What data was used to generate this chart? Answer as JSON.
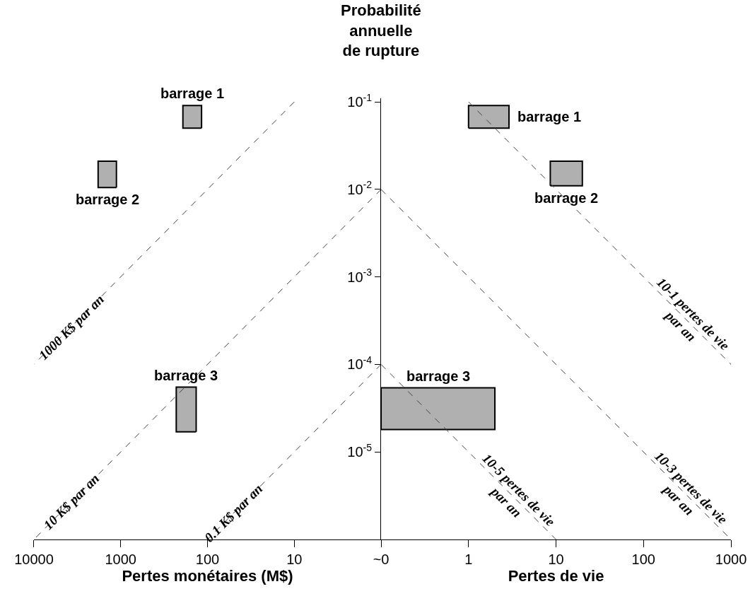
{
  "chart_data": [
    {
      "type": "area",
      "xlabel": "Pertes monétaires (M$)",
      "log": "xy",
      "xlim": [
        10000,
        1
      ],
      "xticks": [
        10000,
        1000,
        100,
        10
      ],
      "ylim": [
        1e-06,
        0.11
      ],
      "tick_labels": "x",
      "series": [
        {
          "name": "barrage 1",
          "color": "#b0b0b0",
          "x": [
            117,
            192,
            192,
            117,
            117
          ],
          "values": [
            0.05,
            0.05,
            0.091,
            0.091,
            0.05
          ]
        },
        {
          "name": "barrage 2",
          "color": "#b0b0b0",
          "x": [
            1120,
            1820,
            1820,
            1120,
            1120
          ],
          "values": [
            0.0105,
            0.0105,
            0.021,
            0.021,
            0.0105
          ]
        },
        {
          "name": "barrage 3",
          "color": "#b0b0b0",
          "x": [
            135,
            229,
            229,
            135,
            135
          ],
          "values": [
            1.7e-05,
            1.7e-05,
            5.5e-05,
            5.5e-05,
            1.7e-05
          ]
        },
        {
          "type": "line",
          "color": "#404040",
          "line_style": "dashed",
          "x": [
            10,
            10000
          ],
          "values": [
            0.1,
            0.0001
          ]
        },
        {
          "type": "line",
          "color": "#404040",
          "line_style": "dashed",
          "x": [
            1,
            10000
          ],
          "values": [
            0.01,
            1e-06
          ]
        },
        {
          "type": "line",
          "color": "#404040",
          "line_style": "dashed",
          "x": [
            1,
            100
          ],
          "values": [
            0.0001,
            1e-06
          ]
        }
      ],
      "annotations": [
        {
          "text": "1000 K$ par an",
          "x": 3700,
          "y": 0.00027
        },
        {
          "text": "10 K$ par an",
          "x": 3700,
          "y": 2.7e-06
        },
        {
          "text": "0.1 K$ par an",
          "x": 50,
          "y": 2e-06
        }
      ]
    },
    {
      "type": "area",
      "xlabel": "Pertes de vie",
      "ylabel": "Probabilité\nannuelle\nde rupture",
      "log": "xy",
      "xlim": [
        0.1,
        1000
      ],
      "xticks": [
        {
          "value": 0.1,
          "label": "~0"
        },
        1,
        10,
        100,
        1000
      ],
      "ylim": [
        1e-06,
        0.11
      ],
      "yticks": [
        {
          "value": 0.1,
          "label": "10$^{-1}$"
        },
        {
          "value": 0.01,
          "label": "10$^{-2}$"
        },
        {
          "value": 0.001,
          "label": "10$^{-3}$"
        },
        {
          "value": 0.0001,
          "label": "10$^{-4}$"
        },
        {
          "value": 1e-05,
          "label": "10$^{-5}$"
        }
      ],
      "series": [
        {
          "name": "barrage 1",
          "color": "#b0b0b0",
          "x": [
            1,
            2.9,
            2.9,
            1,
            1
          ],
          "values": [
            0.05,
            0.05,
            0.091,
            0.091,
            0.05
          ]
        },
        {
          "name": "barrage 2",
          "color": "#b0b0b0",
          "x": [
            8.6,
            20,
            20,
            8.6,
            8.6
          ],
          "values": [
            0.011,
            0.011,
            0.021,
            0.021,
            0.011
          ]
        },
        {
          "name": "barrage 3",
          "color": "#b0b0b0",
          "x": [
            0.1,
            2,
            2,
            0.1,
            0.1
          ],
          "values": [
            1.8e-05,
            1.8e-05,
            5.4e-05,
            5.4e-05,
            1.8e-05
          ]
        },
        {
          "type": "line",
          "color": "#404040",
          "line_style": "dashed",
          "x": [
            1,
            1000
          ],
          "values": [
            0.1,
            0.0001
          ]
        },
        {
          "type": "line",
          "color": "#404040",
          "line_style": "dashed",
          "x": [
            0.1,
            1000
          ],
          "values": [
            0.01,
            1e-06
          ]
        },
        {
          "type": "line",
          "color": "#404040",
          "line_style": "dashed",
          "x": [
            0.1,
            10
          ],
          "values": [
            0.0001,
            1e-06
          ]
        }
      ],
      "annotations": [
        {
          "text": "10-1 pertes de vie\npar an",
          "x": 316,
          "y": 0.00032
        },
        {
          "text": "10-3 pertes de vie\npar an",
          "x": 300,
          "y": 3.3e-06
        },
        {
          "text": "10-5 pertes de vie\npar an",
          "x": 3.2,
          "y": 3.1e-06
        }
      ]
    }
  ]
}
